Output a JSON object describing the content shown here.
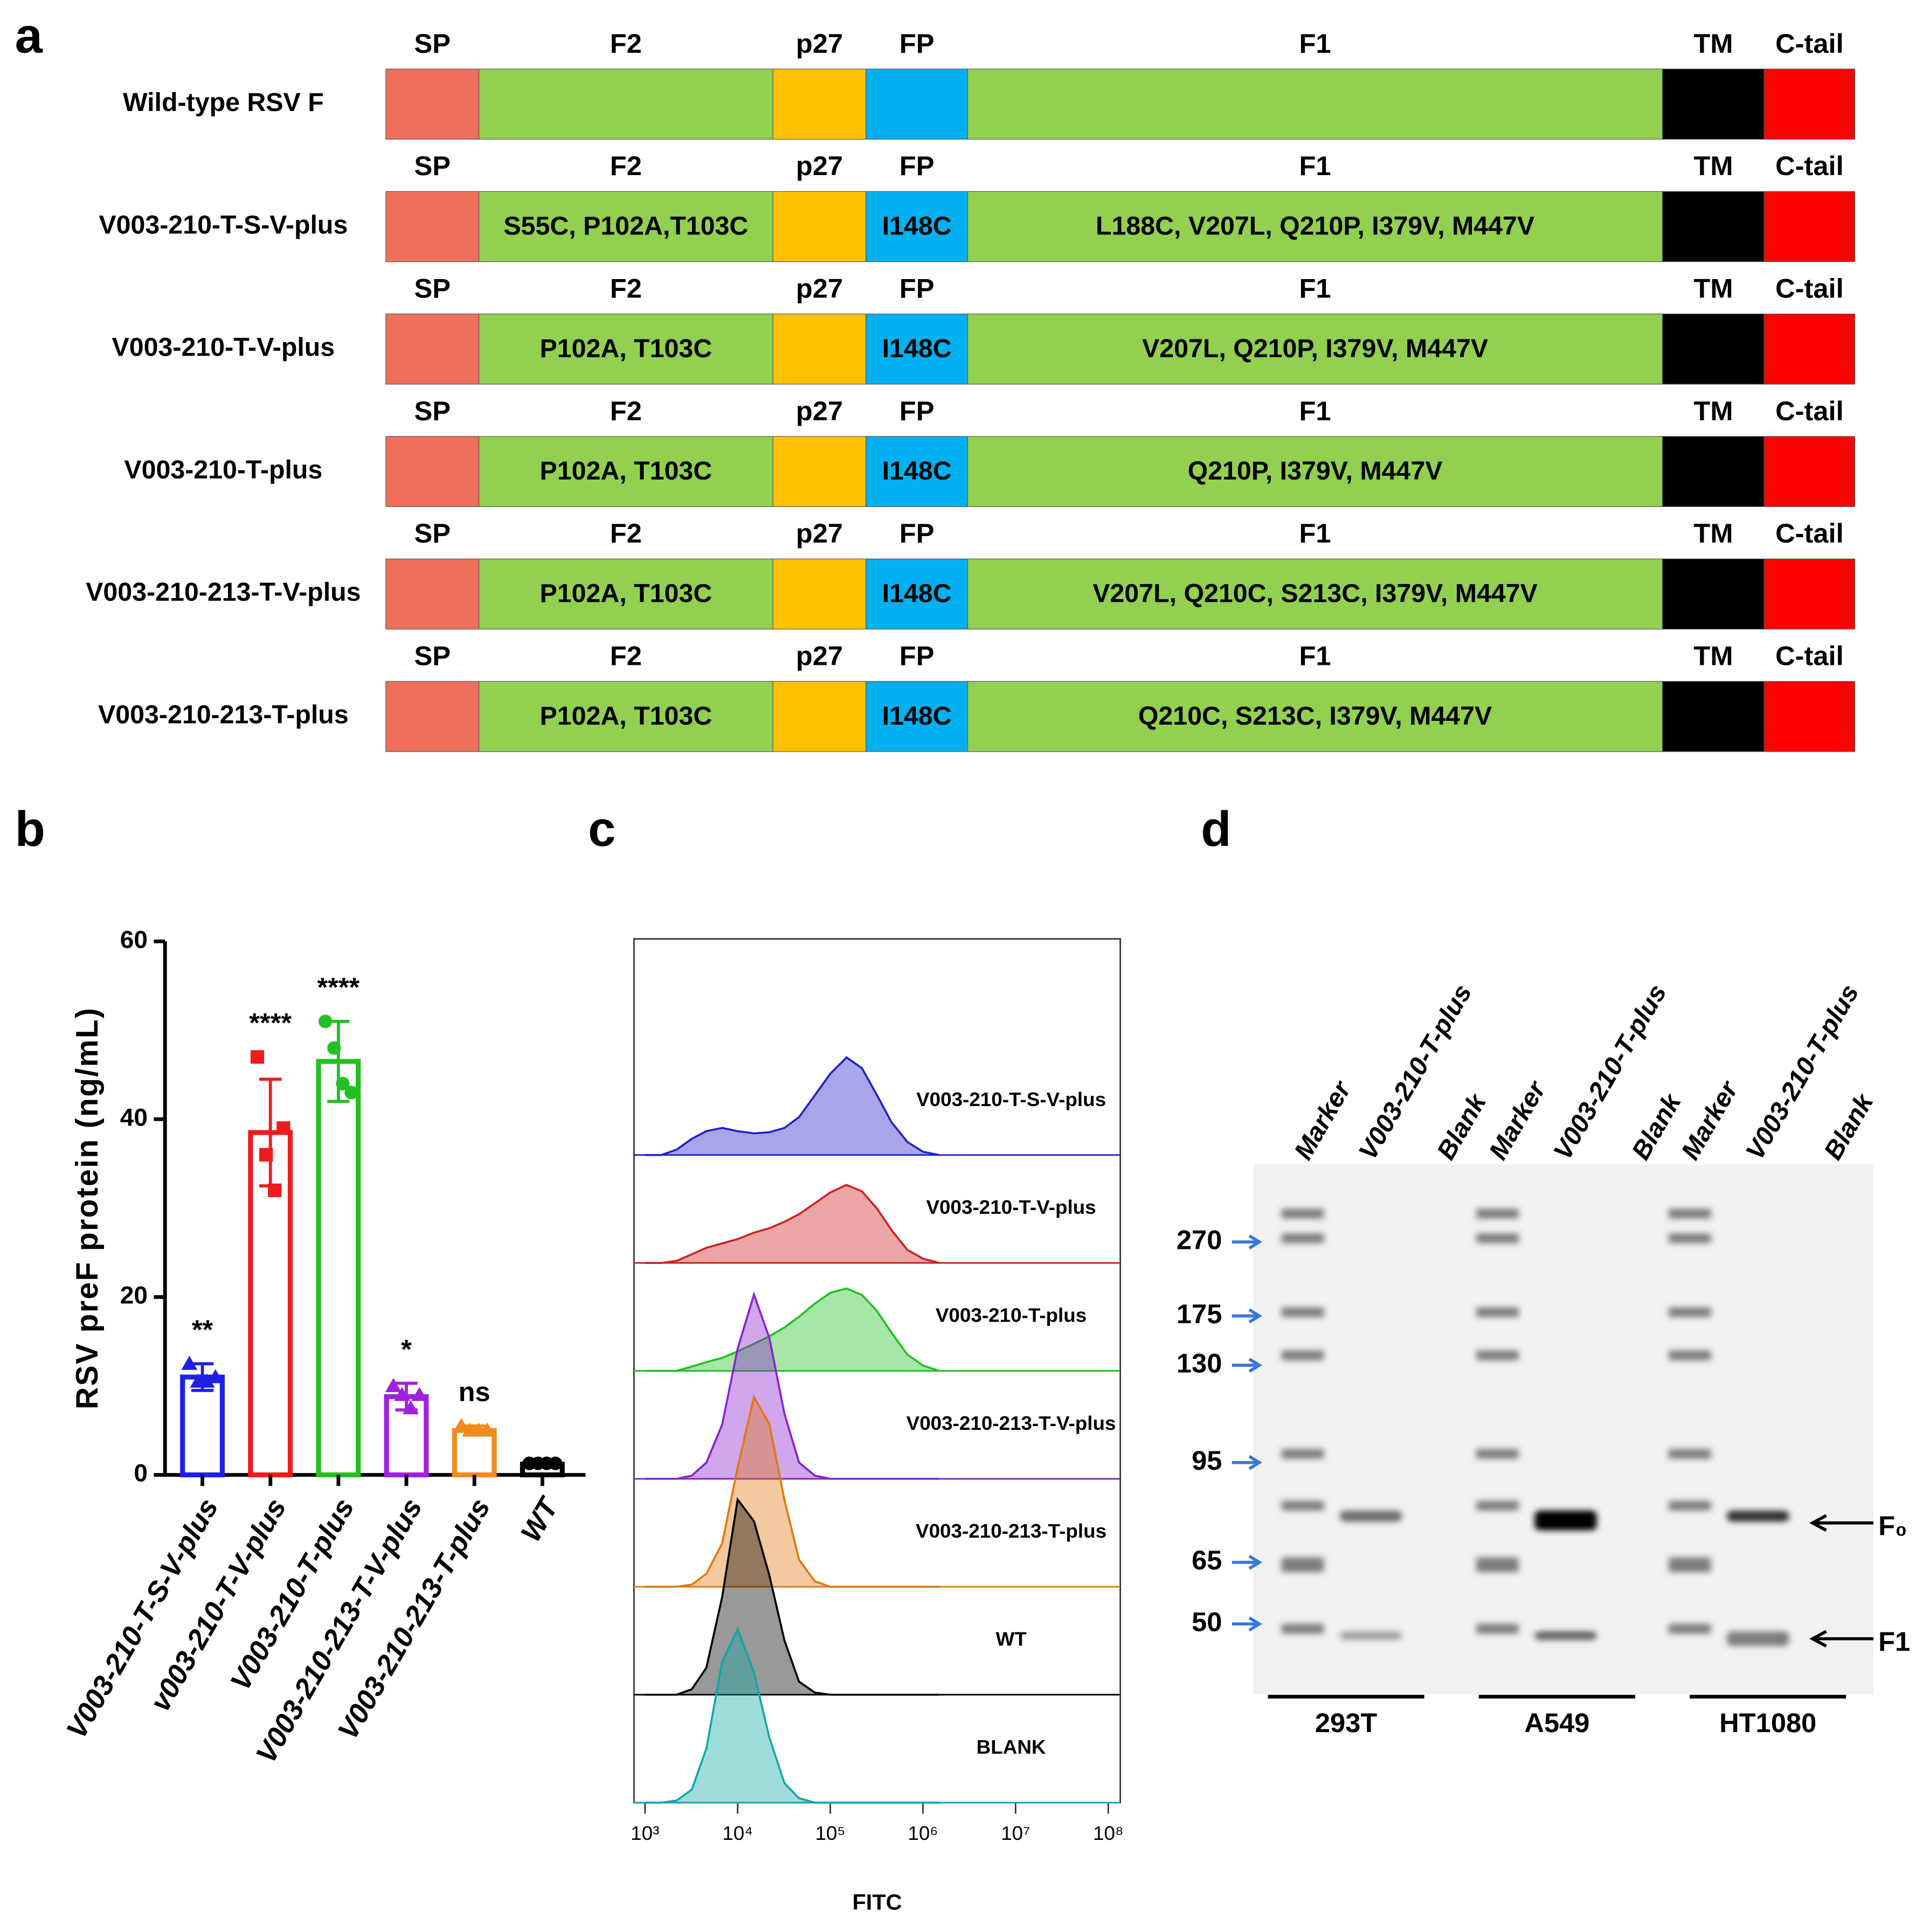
{
  "panel_labels": [
    "a",
    "b",
    "c",
    "d"
  ],
  "schematic": {
    "domains": [
      {
        "name": "SP",
        "color": "#ef6f5a"
      },
      {
        "name": "F2",
        "color": "#92d050"
      },
      {
        "name": "p27",
        "color": "#ffc000"
      },
      {
        "name": "FP",
        "color": "#00b0f0"
      },
      {
        "name": "F1",
        "color": "#92d050"
      },
      {
        "name": "TM",
        "color": "#000000"
      },
      {
        "name": "C-tail",
        "color": "#ff0000"
      }
    ],
    "constructs": [
      {
        "name": "Wild-type RSV F",
        "mutations": [
          null,
          null,
          null,
          null,
          null,
          null,
          null
        ]
      },
      {
        "name": "V003-210-T-S-V-plus",
        "mutations": [
          null,
          "S55C, P102A,T103C",
          null,
          "I148C",
          "L188C, V207L, Q210P, I379V, M447V",
          null,
          null
        ]
      },
      {
        "name": "V003-210-T-V-plus",
        "mutations": [
          null,
          "P102A, T103C",
          null,
          "I148C",
          "V207L, Q210P, I379V, M447V",
          null,
          null
        ]
      },
      {
        "name": "V003-210-T-plus",
        "mutations": [
          null,
          "P102A, T103C",
          null,
          "I148C",
          "Q210P, I379V, M447V",
          null,
          null
        ]
      },
      {
        "name": "V003-210-213-T-V-plus",
        "mutations": [
          null,
          "P102A, T103C",
          null,
          "I148C",
          "V207L, Q210C, S213C, I379V, M447V",
          null,
          null
        ]
      },
      {
        "name": "V003-210-213-T-plus",
        "mutations": [
          null,
          "P102A, T103C",
          null,
          "I148C",
          "Q210C, S213C, I379V, M447V",
          null,
          null
        ]
      }
    ]
  },
  "chart_data": [
    {
      "type": "bar",
      "ylabel": "RSV preF protein (ng/mL)",
      "categories": [
        "V003-210-T-S-V-plus",
        "v003-210-T-V-plus",
        "V003-210-T-plus",
        "V003-210-213-T-V-plus",
        "V003-210-213-T-plus",
        "WT"
      ],
      "values": [
        11,
        38.5,
        46.5,
        8.8,
        5,
        1.2
      ],
      "errors": [
        1.5,
        6,
        4.5,
        1.5,
        0.5,
        0.2
      ],
      "points": [
        [
          12.5,
          10.5,
          10.5,
          11
        ],
        [
          47,
          36,
          32,
          39
        ],
        [
          51,
          48,
          44,
          43
        ],
        [
          10,
          9,
          7.5,
          9
        ],
        [
          5.5,
          5,
          5,
          5
        ],
        [
          1.3,
          1.3,
          1.3,
          1.3
        ]
      ],
      "markers": [
        "triangle",
        "square",
        "circle",
        "triangle",
        "triangle",
        "circle"
      ],
      "colors": [
        "#1f1fe6",
        "#ee1c1c",
        "#22c022",
        "#a020e0",
        "#f28c1c",
        "#000000"
      ],
      "significance": [
        "**",
        "****",
        "****",
        "*",
        "ns",
        null
      ],
      "ylim": [
        0,
        60
      ],
      "yticks": [
        0,
        20,
        40,
        60
      ]
    },
    {
      "type": "area",
      "xlabel": "FITC",
      "log_x": true,
      "x": [
        1000,
        1500,
        2200,
        3200,
        4600,
        6800,
        10000,
        15000,
        22000,
        32000,
        46000,
        68000,
        100000,
        150000,
        220000,
        320000,
        460000,
        680000,
        1000000,
        1500000
      ],
      "xlim": [
        760,
        135000000
      ],
      "xticks": [
        {
          "value": 1000,
          "label": "10³"
        },
        {
          "value": 10000,
          "label": "10⁴"
        },
        {
          "value": 100000,
          "label": "10⁵"
        },
        {
          "value": 1000000,
          "label": "10⁶"
        },
        {
          "value": 10000000,
          "label": "10⁷"
        },
        {
          "value": 100000000,
          "label": "10⁸"
        }
      ],
      "series": [
        {
          "name": "V003-210-T-S-V-plus",
          "color": "#2020c8",
          "values": [
            0,
            0,
            5,
            15,
            22,
            25,
            22,
            20,
            21,
            25,
            35,
            55,
            75,
            90,
            80,
            55,
            30,
            12,
            3,
            0
          ]
        },
        {
          "name": "V003-210-T-V-plus",
          "color": "#d02020",
          "values": [
            0,
            0,
            2,
            8,
            14,
            18,
            22,
            28,
            32,
            38,
            45,
            55,
            65,
            72,
            66,
            50,
            30,
            12,
            4,
            0
          ]
        },
        {
          "name": "V003-210-T-plus",
          "color": "#20c020",
          "values": [
            0,
            0,
            0,
            4,
            8,
            12,
            18,
            25,
            32,
            40,
            50,
            62,
            72,
            76,
            70,
            55,
            35,
            15,
            5,
            0
          ]
        },
        {
          "name": "V003-210-213-T-V-plus",
          "color": "#8a20d0",
          "values": [
            0,
            0,
            0,
            3,
            15,
            50,
            120,
            170,
            130,
            60,
            15,
            3,
            0,
            0,
            0,
            0,
            0,
            0,
            0,
            0
          ]
        },
        {
          "name": "V003-210-213-T-plus",
          "color": "#e07810",
          "values": [
            0,
            0,
            0,
            2,
            12,
            40,
            110,
            175,
            150,
            80,
            25,
            5,
            0,
            0,
            0,
            0,
            0,
            0,
            0,
            0
          ]
        },
        {
          "name": "WT",
          "color": "#000000",
          "values": [
            0,
            0,
            0,
            5,
            25,
            90,
            180,
            160,
            110,
            50,
            12,
            2,
            0,
            0,
            0,
            0,
            0,
            0,
            0,
            0
          ]
        },
        {
          "name": "BLANK",
          "color": "#10a8a8",
          "values": [
            0,
            0,
            2,
            12,
            50,
            130,
            160,
            120,
            60,
            18,
            4,
            0,
            0,
            0,
            0,
            0,
            0,
            0,
            0,
            0
          ]
        }
      ]
    }
  ],
  "blot": {
    "lanes": [
      "Marker",
      "V003-210-T-plus",
      "Blank"
    ],
    "cell_lines": [
      "293T",
      "A549",
      "HT1080"
    ],
    "mw_markers": [
      270,
      175,
      130,
      95,
      65,
      50
    ],
    "bands": [
      "F₀",
      "F1"
    ]
  }
}
